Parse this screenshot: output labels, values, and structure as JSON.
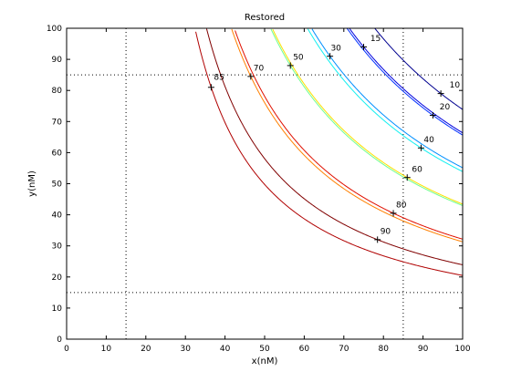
{
  "chart_data": {
    "type": "line",
    "title": "Restored",
    "xlabel": "x(nM)",
    "ylabel": "y(nM)",
    "xlim": [
      0,
      100
    ],
    "ylim": [
      0,
      100
    ],
    "xticks": [
      "0",
      "10",
      "20",
      "30",
      "40",
      "50",
      "60",
      "70",
      "80",
      "90",
      "100"
    ],
    "yticks": [
      "0",
      "10",
      "20",
      "30",
      "40",
      "50",
      "60",
      "70",
      "80",
      "90",
      "100"
    ],
    "reference_lines": {
      "x": [
        15,
        85
      ],
      "y": [
        15,
        85
      ],
      "style": "dotted"
    },
    "grid": false,
    "series": [
      {
        "label": "10",
        "color": "#00008f",
        "label_x": 94.5,
        "label_y": 79,
        "label_at": [
          96,
          80
        ]
      },
      {
        "label": "15",
        "color": "#0000dd",
        "label_x": 75,
        "label_y": 94,
        "label_at": [
          76,
          95
        ]
      },
      {
        "label": "20",
        "color": "#0030ff",
        "label_x": 92.5,
        "label_y": 72,
        "label_at": [
          93.5,
          73
        ]
      },
      {
        "label": "30",
        "color": "#0090ff",
        "label_x": 66.5,
        "label_y": 91,
        "label_at": [
          66,
          92
        ]
      },
      {
        "label": "40",
        "color": "#10f0f0",
        "label_x": 89.5,
        "label_y": 61.5,
        "label_at": [
          89.5,
          62.5
        ]
      },
      {
        "label": "50",
        "color": "#70ff90",
        "label_x": 56.5,
        "label_y": 88,
        "label_at": [
          56.5,
          89
        ]
      },
      {
        "label": "60",
        "color": "#ffe000",
        "label_x": 86,
        "label_y": 52,
        "label_at": [
          86.5,
          53
        ]
      },
      {
        "label": "70",
        "color": "#ff8000",
        "label_x": 46.5,
        "label_y": 84.5,
        "label_at": [
          46.5,
          85.5
        ]
      },
      {
        "label": "80",
        "color": "#e01000",
        "label_x": 82.5,
        "label_y": 40.5,
        "label_at": [
          82.5,
          41.5
        ]
      },
      {
        "label": "85",
        "color": "#b00000",
        "label_x": 36.5,
        "label_y": 81,
        "label_at": [
          36.5,
          82.5
        ]
      },
      {
        "label": "90",
        "color": "#800000",
        "label_x": 78.5,
        "label_y": 32,
        "label_at": [
          78.5,
          33
        ]
      }
    ]
  }
}
